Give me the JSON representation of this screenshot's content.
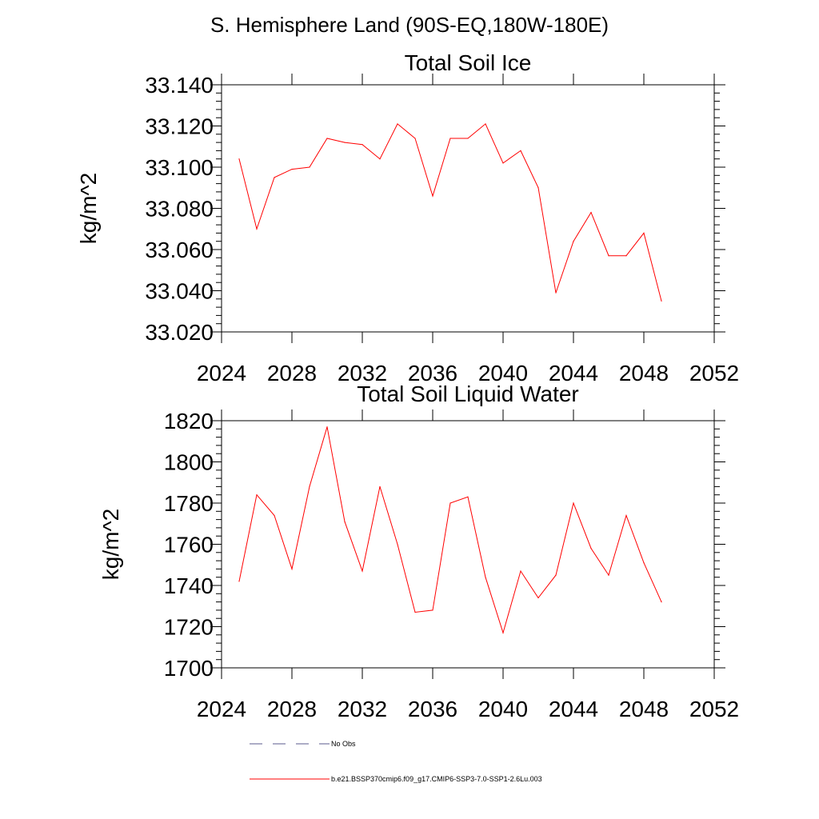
{
  "page": {
    "title": "S. Hemisphere Land (90S-EQ,180W-180E)"
  },
  "chart_data": [
    {
      "type": "line",
      "title": "Total Soil Ice",
      "xlabel": "",
      "ylabel": "kg/m^2",
      "xlim": [
        2024,
        2052
      ],
      "ylim": [
        33.02,
        33.14
      ],
      "xticks": [
        "2024",
        "2028",
        "2032",
        "2036",
        "2040",
        "2044",
        "2048",
        "2052"
      ],
      "yticks": [
        "33.020",
        "33.040",
        "33.060",
        "33.080",
        "33.100",
        "33.120",
        "33.140"
      ],
      "grid": false,
      "series": [
        {
          "name": "b.e21.BSSP370cmip6.f09_g17.CMIP6-SSP3-7.0-SSP1-2.6Lu.003",
          "color": "#ff0000",
          "x": [
            2025,
            2026,
            2027,
            2028,
            2029,
            2030,
            2031,
            2032,
            2033,
            2034,
            2035,
            2036,
            2037,
            2038,
            2039,
            2040,
            2041,
            2042,
            2043,
            2044,
            2045,
            2046,
            2047,
            2048,
            2049
          ],
          "values": [
            33.104,
            33.07,
            33.095,
            33.099,
            33.1,
            33.114,
            33.112,
            33.111,
            33.104,
            33.121,
            33.114,
            33.086,
            33.114,
            33.114,
            33.121,
            33.102,
            33.108,
            33.09,
            33.039,
            33.064,
            33.078,
            33.057,
            33.057,
            33.068,
            33.035
          ]
        }
      ]
    },
    {
      "type": "line",
      "title": "Total Soil Liquid Water",
      "xlabel": "",
      "ylabel": "kg/m^2",
      "xlim": [
        2024,
        2052
      ],
      "ylim": [
        1700,
        1820
      ],
      "xticks": [
        "2024",
        "2028",
        "2032",
        "2036",
        "2040",
        "2044",
        "2048",
        "2052"
      ],
      "yticks": [
        "1700",
        "1720",
        "1740",
        "1760",
        "1780",
        "1800",
        "1820"
      ],
      "grid": false,
      "series": [
        {
          "name": "b.e21.BSSP370cmip6.f09_g17.CMIP6-SSP3-7.0-SSP1-2.6Lu.003",
          "color": "#ff0000",
          "x": [
            2025,
            2026,
            2027,
            2028,
            2029,
            2030,
            2031,
            2032,
            2033,
            2034,
            2035,
            2036,
            2037,
            2038,
            2039,
            2040,
            2041,
            2042,
            2043,
            2044,
            2045,
            2046,
            2047,
            2048,
            2049
          ],
          "values": [
            1742,
            1784,
            1774,
            1748,
            1788,
            1817,
            1771,
            1747,
            1788,
            1760,
            1727,
            1728,
            1780,
            1783,
            1744,
            1717,
            1747,
            1734,
            1745,
            1780,
            1758,
            1745,
            1774,
            1751,
            1732
          ]
        }
      ]
    }
  ],
  "legend": {
    "items": [
      {
        "label": "No Obs",
        "style": "dashed",
        "color": "#5a5a8c"
      },
      {
        "label": "b.e21.BSSP370cmip6.f09_g17.CMIP6-SSP3-7.0-SSP1-2.6Lu.003",
        "style": "solid",
        "color": "#ff0000"
      }
    ]
  }
}
